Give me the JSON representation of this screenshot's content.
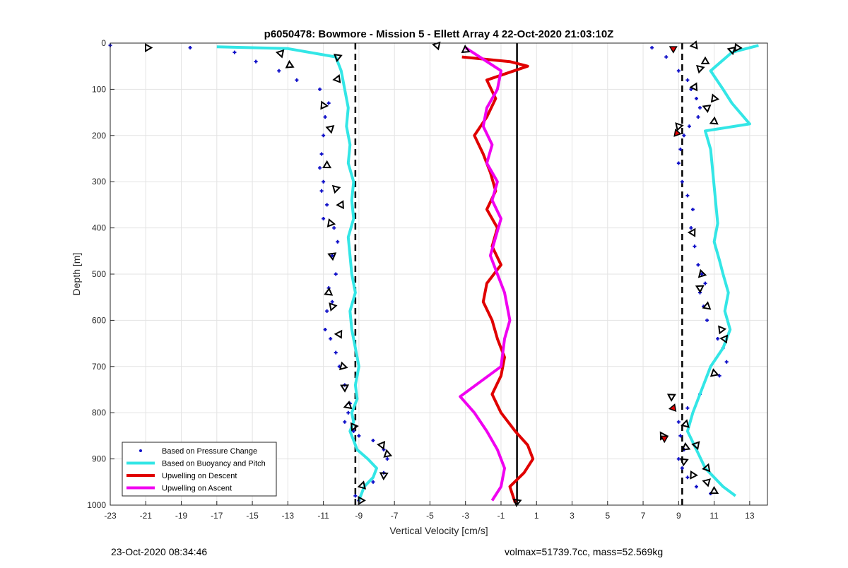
{
  "chart_data": {
    "type": "scatter",
    "title": "p6050478: Bowmore - Mission 5 - Ellett Array 4 22-Oct-2020 21:03:10Z",
    "xlabel": "Vertical Velocity [cm/s]",
    "ylabel": "Depth [m]",
    "xlim": [
      -23,
      14
    ],
    "ylim": [
      1000,
      0
    ],
    "y_reversed": true,
    "xticks": [
      -23,
      -21,
      -19,
      -17,
      -15,
      -13,
      -11,
      -9,
      -7,
      -5,
      -3,
      -1,
      1,
      3,
      5,
      7,
      9,
      11,
      13
    ],
    "yticks": [
      0,
      100,
      200,
      300,
      400,
      500,
      600,
      700,
      800,
      900,
      1000
    ],
    "grid": true,
    "legend_position": "bottom-left",
    "reference_lines": [
      {
        "style": "dashed",
        "color": "#000000",
        "x": -9.2
      },
      {
        "style": "dashed",
        "color": "#000000",
        "x": 9.2
      },
      {
        "style": "solid",
        "color": "#000000",
        "x": -0.1
      }
    ],
    "colors": {
      "pressure": "#1010c8",
      "buoyancy": "#33e6e6",
      "descent": "#e00000",
      "ascent": "#f000f0"
    },
    "series": [
      {
        "name": "Based on Pressure Change",
        "style": "markers",
        "color": "#1010c8",
        "profiles": [
          {
            "x": [
              -23,
              -18.5,
              -16,
              -14.8,
              -13.5,
              -12.5,
              -11.2,
              -10.7,
              -10.9,
              -11.0,
              -11.1,
              -11.2,
              -11.0,
              -11.1,
              -10.8,
              -11.0,
              -10.4,
              -10.2,
              -10.5,
              -10.3,
              -10.7,
              -10.5,
              -10.8,
              -10.9,
              -10.6,
              -10.3,
              -10.1,
              -9.8,
              -9.5,
              -9.6,
              -9.8,
              -9.3,
              -9.0,
              -8.2,
              -7.6,
              -7.4,
              -7.6,
              -8.2,
              -9.2,
              -9.0
            ],
            "y": [
              5,
              10,
              20,
              40,
              60,
              80,
              100,
              130,
              160,
              200,
              240,
              270,
              300,
              320,
              350,
              380,
              400,
              430,
              460,
              500,
              530,
              560,
              580,
              620,
              640,
              670,
              700,
              740,
              780,
              800,
              820,
              840,
              850,
              860,
              880,
              900,
              930,
              950,
              980,
              990
            ]
          },
          {
            "x": [
              7.5,
              8.3,
              9.0,
              9.5,
              9.7,
              10.0,
              10.2,
              10.1,
              9.6,
              9.3,
              9.1,
              9.0,
              9.2,
              9.5,
              9.8,
              9.7,
              9.9,
              10.1,
              10.3,
              10.5,
              10.2,
              10.4,
              10.6,
              11.2,
              11.5,
              11.7,
              11.3,
              10.2,
              9.5,
              9.0,
              9.1,
              9.3,
              9.0,
              9.2,
              9.5,
              10.0,
              10.8
            ],
            "y": [
              10,
              30,
              60,
              80,
              100,
              120,
              140,
              160,
              180,
              200,
              230,
              260,
              300,
              330,
              360,
              400,
              440,
              480,
              500,
              520,
              540,
              570,
              600,
              640,
              660,
              690,
              720,
              760,
              790,
              820,
              850,
              880,
              900,
              920,
              940,
              960,
              975
            ]
          }
        ]
      },
      {
        "name": "Based on Buoyancy and Pitch",
        "style": "line",
        "color": "#33e6e6",
        "profiles": [
          {
            "x": [
              -17,
              -13,
              -10.3,
              -10.0,
              -9.8,
              -9.6,
              -9.7,
              -9.5,
              -9.6,
              -9.3,
              -9.4,
              -9.3,
              -9.6,
              -9.5,
              -9.4,
              -9.2,
              -9.5,
              -9.4,
              -9.2,
              -9.0,
              -9.2,
              -9.1,
              -9.4,
              -9.3,
              -9.5,
              -9.3,
              -9.1,
              -8.5,
              -8.0,
              -8.2,
              -8.7,
              -9.0
            ],
            "y": [
              8,
              12,
              30,
              60,
              100,
              140,
              180,
              220,
              260,
              300,
              340,
              380,
              420,
              460,
              500,
              540,
              580,
              620,
              660,
              700,
              740,
              770,
              800,
              820,
              840,
              860,
              880,
              900,
              920,
              940,
              960,
              990
            ]
          },
          {
            "x": [
              13.5,
              12.0,
              10.8,
              11.5,
              12.0,
              13.0,
              10.5,
              10.8,
              10.9,
              11.0,
              11.1,
              11.2,
              11.0,
              11.3,
              11.5,
              11.8,
              11.6,
              11.9,
              11.5,
              10.8,
              10.2,
              9.8,
              9.5,
              10.0,
              10.5,
              11.5,
              12.2
            ],
            "y": [
              5,
              20,
              60,
              100,
              130,
              175,
              190,
              230,
              270,
              310,
              350,
              390,
              430,
              470,
              500,
              540,
              580,
              620,
              660,
              700,
              760,
              800,
              840,
              880,
              920,
              960,
              980
            ]
          }
        ]
      },
      {
        "name": "Upwelling on Descent",
        "style": "line",
        "color": "#e00000",
        "profiles": [
          {
            "x": [
              -3.2,
              -0.5,
              0.5,
              -1.8,
              -1.3,
              -1.8,
              -2.5,
              -2.0,
              -1.6,
              -1.3,
              -1.8,
              -1.2,
              -1.5,
              -1.0,
              -1.8,
              -2.0,
              -1.5,
              -1.2,
              -0.8,
              -1.0,
              -1.5,
              -1.0,
              -0.2,
              0.5,
              0.8,
              0.3,
              -0.5,
              -0.2
            ],
            "y": [
              30,
              40,
              50,
              80,
              120,
              160,
              200,
              240,
              280,
              320,
              360,
              400,
              440,
              480,
              520,
              560,
              600,
              640,
              680,
              720,
              760,
              800,
              840,
              870,
              900,
              930,
              960,
              995
            ]
          }
        ]
      },
      {
        "name": "Upwelling on Ascent",
        "style": "line",
        "color": "#f000f0",
        "profiles": [
          {
            "x": [
              -3.0,
              -1.0,
              -1.2,
              -1.8,
              -2.0,
              -1.5,
              -1.8,
              -1.2,
              -1.5,
              -1.0,
              -1.3,
              -1.6,
              -1.2,
              -0.8,
              -0.5,
              -0.8,
              -1.0,
              -3.3,
              -2.5,
              -1.8,
              -1.2,
              -0.8,
              -1.0,
              -1.5
            ],
            "y": [
              10,
              60,
              100,
              140,
              180,
              220,
              260,
              300,
              340,
              380,
              420,
              460,
              500,
              540,
              600,
              640,
              700,
              765,
              800,
              840,
              880,
              920,
              960,
              990
            ]
          }
        ]
      }
    ],
    "markers": {
      "style": "open-triangle",
      "color": "#000000",
      "points": [
        {
          "x": -20.9,
          "y": 10
        },
        {
          "x": -13.4,
          "y": 22
        },
        {
          "x": -12.9,
          "y": 48
        },
        {
          "x": -10.2,
          "y": 30
        },
        {
          "x": -10.2,
          "y": 78
        },
        {
          "x": -11.0,
          "y": 135
        },
        {
          "x": -10.6,
          "y": 185
        },
        {
          "x": -10.8,
          "y": 265
        },
        {
          "x": -10.3,
          "y": 315
        },
        {
          "x": -10.0,
          "y": 350
        },
        {
          "x": -10.6,
          "y": 390
        },
        {
          "x": -10.5,
          "y": 460
        },
        {
          "x": -10.7,
          "y": 540
        },
        {
          "x": -10.5,
          "y": 570
        },
        {
          "x": -10.1,
          "y": 630
        },
        {
          "x": -9.9,
          "y": 700
        },
        {
          "x": -9.8,
          "y": 745
        },
        {
          "x": -9.6,
          "y": 785
        },
        {
          "x": -9.3,
          "y": 830
        },
        {
          "x": -7.7,
          "y": 870
        },
        {
          "x": -7.4,
          "y": 890
        },
        {
          "x": -7.6,
          "y": 935
        },
        {
          "x": -8.8,
          "y": 958
        },
        {
          "x": -8.9,
          "y": 990
        },
        {
          "x": -4.6,
          "y": 5
        },
        {
          "x": -3.0,
          "y": 15
        },
        {
          "x": -0.1,
          "y": 993
        },
        {
          "x": 9.9,
          "y": 5
        },
        {
          "x": 12.3,
          "y": 10
        },
        {
          "x": 12.0,
          "y": 15
        },
        {
          "x": 10.5,
          "y": 40
        },
        {
          "x": 10.2,
          "y": 55
        },
        {
          "x": 9.9,
          "y": 95
        },
        {
          "x": 11.0,
          "y": 120
        },
        {
          "x": 10.6,
          "y": 140
        },
        {
          "x": 11.0,
          "y": 170
        },
        {
          "x": 9.0,
          "y": 180
        },
        {
          "x": 9.8,
          "y": 410
        },
        {
          "x": 10.3,
          "y": 500
        },
        {
          "x": 10.2,
          "y": 530
        },
        {
          "x": 10.6,
          "y": 570
        },
        {
          "x": 11.4,
          "y": 620
        },
        {
          "x": 11.6,
          "y": 640
        },
        {
          "x": 11.0,
          "y": 715
        },
        {
          "x": 8.6,
          "y": 765
        },
        {
          "x": 9.4,
          "y": 825
        },
        {
          "x": 8.1,
          "y": 850
        },
        {
          "x": 10.0,
          "y": 870
        },
        {
          "x": 9.4,
          "y": 875
        },
        {
          "x": 9.3,
          "y": 905
        },
        {
          "x": 10.6,
          "y": 920
        },
        {
          "x": 9.8,
          "y": 935
        },
        {
          "x": 10.6,
          "y": 950
        },
        {
          "x": 11.0,
          "y": 970
        }
      ]
    },
    "red_markers": {
      "style": "filled-triangle",
      "color": "#e00000",
      "points": [
        {
          "x": 8.7,
          "y": 12
        },
        {
          "x": 8.9,
          "y": 195
        },
        {
          "x": 8.7,
          "y": 790
        },
        {
          "x": 8.2,
          "y": 855
        }
      ]
    }
  },
  "footer": {
    "left": "23-Oct-2020 08:34:46",
    "right": "volmax=51739.7cc, mass=52.569kg"
  }
}
